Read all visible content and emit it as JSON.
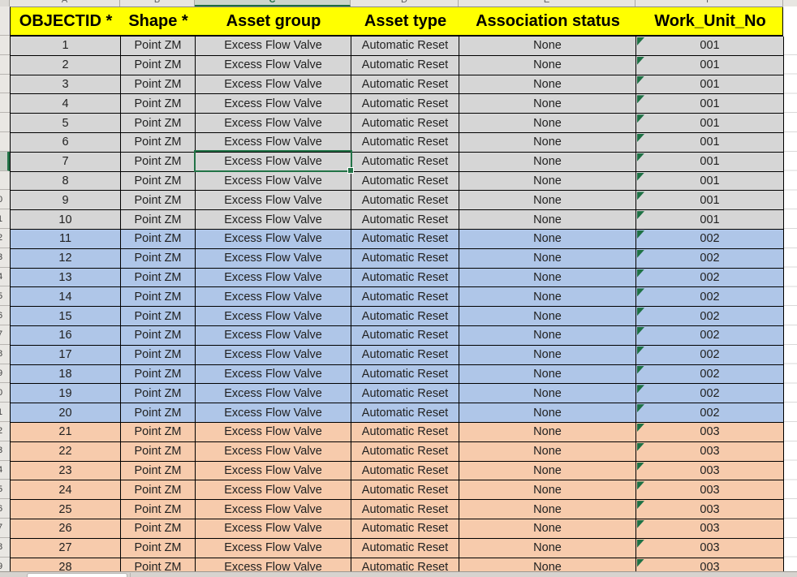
{
  "column_strip": {
    "letters": [
      "A",
      "B",
      "C",
      "D",
      "E",
      "F"
    ],
    "selected_letter": "C"
  },
  "row_strip": {
    "digits": [
      "",
      "",
      "",
      "",
      "",
      "",
      "",
      "",
      "0",
      "1",
      "2",
      "3",
      "4",
      "5",
      "6",
      "7",
      "8",
      "9",
      "0",
      "1",
      "2",
      "3",
      "4",
      "5",
      "6",
      "7",
      "8",
      "9"
    ]
  },
  "table": {
    "headers": [
      "OBJECTID *",
      "Shape *",
      "Asset group",
      "Asset type",
      "Association status",
      "Work_Unit_No"
    ],
    "header_fill": "#FFFF00",
    "rows": [
      [
        "1",
        "Point ZM",
        "Excess Flow Valve",
        "Automatic Reset",
        "None",
        "001"
      ],
      [
        "2",
        "Point ZM",
        "Excess Flow Valve",
        "Automatic Reset",
        "None",
        "001"
      ],
      [
        "3",
        "Point ZM",
        "Excess Flow Valve",
        "Automatic Reset",
        "None",
        "001"
      ],
      [
        "4",
        "Point ZM",
        "Excess Flow Valve",
        "Automatic Reset",
        "None",
        "001"
      ],
      [
        "5",
        "Point ZM",
        "Excess Flow Valve",
        "Automatic Reset",
        "None",
        "001"
      ],
      [
        "6",
        "Point ZM",
        "Excess Flow Valve",
        "Automatic Reset",
        "None",
        "001"
      ],
      [
        "7",
        "Point ZM",
        "Excess Flow Valve",
        "Automatic Reset",
        "None",
        "001"
      ],
      [
        "8",
        "Point ZM",
        "Excess Flow Valve",
        "Automatic Reset",
        "None",
        "001"
      ],
      [
        "9",
        "Point ZM",
        "Excess Flow Valve",
        "Automatic Reset",
        "None",
        "001"
      ],
      [
        "10",
        "Point ZM",
        "Excess Flow Valve",
        "Automatic Reset",
        "None",
        "001"
      ],
      [
        "11",
        "Point ZM",
        "Excess Flow Valve",
        "Automatic Reset",
        "None",
        "002"
      ],
      [
        "12",
        "Point ZM",
        "Excess Flow Valve",
        "Automatic Reset",
        "None",
        "002"
      ],
      [
        "13",
        "Point ZM",
        "Excess Flow Valve",
        "Automatic Reset",
        "None",
        "002"
      ],
      [
        "14",
        "Point ZM",
        "Excess Flow Valve",
        "Automatic Reset",
        "None",
        "002"
      ],
      [
        "15",
        "Point ZM",
        "Excess Flow Valve",
        "Automatic Reset",
        "None",
        "002"
      ],
      [
        "16",
        "Point ZM",
        "Excess Flow Valve",
        "Automatic Reset",
        "None",
        "002"
      ],
      [
        "17",
        "Point ZM",
        "Excess Flow Valve",
        "Automatic Reset",
        "None",
        "002"
      ],
      [
        "18",
        "Point ZM",
        "Excess Flow Valve",
        "Automatic Reset",
        "None",
        "002"
      ],
      [
        "19",
        "Point ZM",
        "Excess Flow Valve",
        "Automatic Reset",
        "None",
        "002"
      ],
      [
        "20",
        "Point ZM",
        "Excess Flow Valve",
        "Automatic Reset",
        "None",
        "002"
      ],
      [
        "21",
        "Point ZM",
        "Excess Flow Valve",
        "Automatic Reset",
        "None",
        "003"
      ],
      [
        "22",
        "Point ZM",
        "Excess Flow Valve",
        "Automatic Reset",
        "None",
        "003"
      ],
      [
        "23",
        "Point ZM",
        "Excess Flow Valve",
        "Automatic Reset",
        "None",
        "003"
      ],
      [
        "24",
        "Point ZM",
        "Excess Flow Valve",
        "Automatic Reset",
        "None",
        "003"
      ],
      [
        "25",
        "Point ZM",
        "Excess Flow Valve",
        "Automatic Reset",
        "None",
        "003"
      ],
      [
        "26",
        "Point ZM",
        "Excess Flow Valve",
        "Automatic Reset",
        "None",
        "003"
      ],
      [
        "27",
        "Point ZM",
        "Excess Flow Valve",
        "Automatic Reset",
        "None",
        "003"
      ],
      [
        "28",
        "Point ZM",
        "Excess Flow Valve",
        "Automatic Reset",
        "None",
        "003"
      ]
    ],
    "group_fills": {
      "001": "#D6D6D6",
      "002": "#AFC6E8",
      "003": "#F7CBAC"
    }
  },
  "active_cell": {
    "row": 7,
    "column": "Asset group"
  },
  "colors": {
    "selection_green": "#217346",
    "error_indicator_green": "#1E7145",
    "grid_border": "#000000",
    "header_yellow": "#FFFF00"
  }
}
